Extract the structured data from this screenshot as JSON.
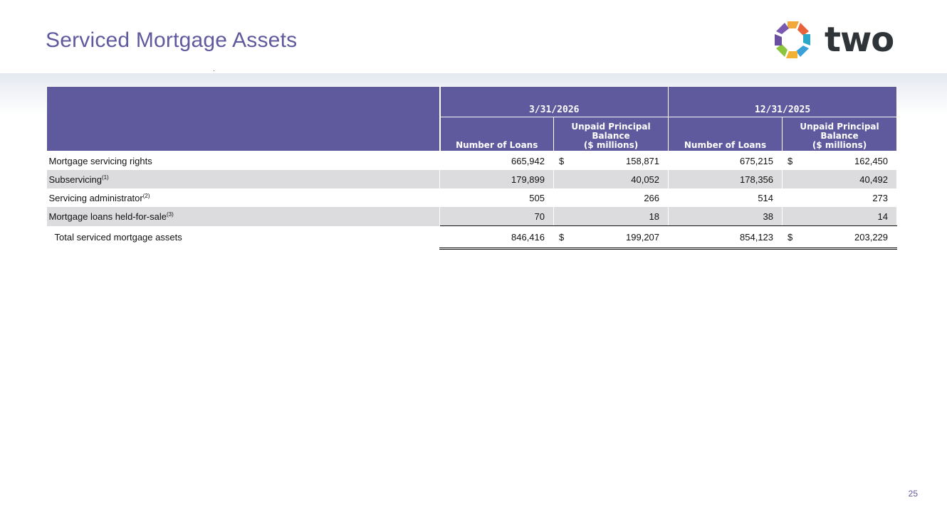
{
  "slide": {
    "title": "Serviced Mortgage Assets",
    "page_number": "25",
    "logo_text": "two",
    "accent_color": "#5f5a9e"
  },
  "table": {
    "periods": [
      "3/31/2026",
      "12/31/2025"
    ],
    "subheaders": {
      "loans": "Number of Loans",
      "upb_line1": "Unpaid Principal",
      "upb_line2": "Balance",
      "upb_line3": "($ millions)"
    },
    "currency_symbol": "$",
    "rows": [
      {
        "label": "Mortgage servicing rights",
        "footnote": "",
        "loans_q1": "665,942",
        "upb_q1": "158,871",
        "loans_q4": "675,215",
        "upb_q4": "162,450"
      },
      {
        "label": "Subservicing",
        "footnote": "(1)",
        "loans_q1": "179,899",
        "upb_q1": "40,052",
        "loans_q4": "178,356",
        "upb_q4": "40,492"
      },
      {
        "label": "Servicing administrator",
        "footnote": "(2)",
        "loans_q1": "505",
        "upb_q1": "266",
        "loans_q4": "514",
        "upb_q4": "273"
      },
      {
        "label": "Mortgage loans held-for-sale",
        "footnote": "(3)",
        "loans_q1": "70",
        "upb_q1": "18",
        "loans_q4": "38",
        "upb_q4": "14"
      }
    ],
    "total": {
      "label": "Total serviced mortgage assets",
      "loans_q1": "846,416",
      "upb_q1": "199,207",
      "loans_q4": "854,123",
      "upb_q4": "203,229"
    }
  }
}
